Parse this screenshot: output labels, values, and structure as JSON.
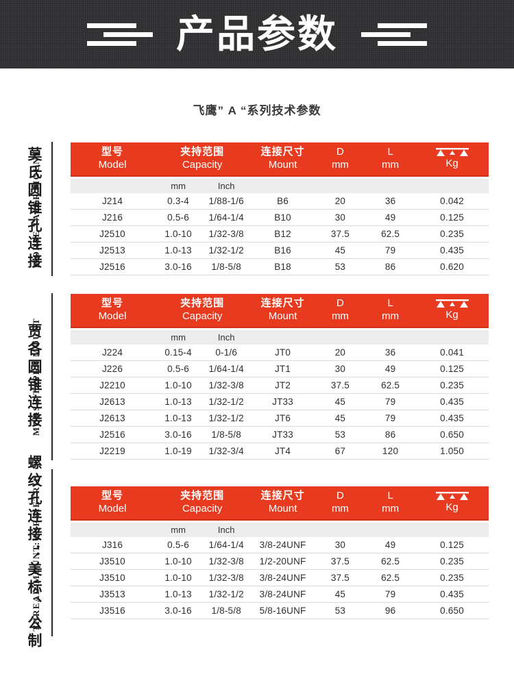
{
  "banner": {
    "title": "产品参数"
  },
  "subtitle": "飞鹰” A “系列技术参数",
  "tables": [
    {
      "label_cn": "莫氏圆锥孔连接",
      "label_en": "MORSE TAPER MOUNT",
      "header": {
        "model_cn": "型号",
        "model_en": "Model",
        "capacity_cn": "夹持范围",
        "capacity_en": "Capacity",
        "mount_cn": "连接尺寸",
        "mount_en": "Mount",
        "d_top": "D",
        "d_unit": "mm",
        "l_top": "L",
        "l_unit": "mm",
        "kg_label": "Kg",
        "kg_icon": "balance-scale-icon"
      },
      "subheader": {
        "mm": "mm",
        "inch": "Inch"
      },
      "rows": [
        [
          "J214",
          "0.3-4",
          "1/88-1/6",
          "B6",
          "20",
          "36",
          "0.042"
        ],
        [
          "J216",
          "0.5-6",
          "1/64-1/4",
          "B10",
          "30",
          "49",
          "0.125"
        ],
        [
          "J2510",
          "1.0-10",
          "1/32-3/8",
          "B12",
          "37.5",
          "62.5",
          "0.235"
        ],
        [
          "J2513",
          "1.0-13",
          "1/32-1/2",
          "B16",
          "45",
          "79",
          "0.435"
        ],
        [
          "J2516",
          "3.0-16",
          "1/8-5/8",
          "B18",
          "53",
          "86",
          "0.620"
        ]
      ]
    },
    {
      "label_cn": "贾各圆锥连接",
      "label_en": "MORSE TAPER MOUNT",
      "header": {
        "model_cn": "型号",
        "model_en": "Model",
        "capacity_cn": "夹持范围",
        "capacity_en": "Capacity",
        "mount_cn": "连接尺寸",
        "mount_en": "Mount",
        "d_top": "D",
        "d_unit": "mm",
        "l_top": "L",
        "l_unit": "mm",
        "kg_label": "Kg",
        "kg_icon": "balance-scale-icon"
      },
      "subheader": {
        "mm": "mm",
        "inch": "Inch"
      },
      "rows": [
        [
          "J224",
          "0.15-4",
          "0-1/6",
          "JT0",
          "20",
          "36",
          "0.041"
        ],
        [
          "J226",
          "0.5-6",
          "1/64-1/4",
          "JT1",
          "30",
          "49",
          "0.125"
        ],
        [
          "J2210",
          "1.0-10",
          "1/32-3/8",
          "JT2",
          "37.5",
          "62.5",
          "0.235"
        ],
        [
          "J2613",
          "1.0-13",
          "1/32-1/2",
          "JT33",
          "45",
          "79",
          "0.435"
        ],
        [
          "J2613",
          "1.0-13",
          "1/32-1/2",
          "JT6",
          "45",
          "79",
          "0.435"
        ],
        [
          "J2516",
          "3.0-16",
          "1/8-5/8",
          "JT33",
          "53",
          "86",
          "0.650"
        ],
        [
          "J2219",
          "1.0-19",
          "1/32-3/4",
          "JT4",
          "67",
          "120",
          "1.050"
        ]
      ]
    },
    {
      "label_cn": "螺纹孔连接：美标、公制",
      "label_en": "THREAD MOUNT:UNF METRIC",
      "header": {
        "model_cn": "型号",
        "model_en": "Model",
        "capacity_cn": "夹持范围",
        "capacity_en": "Capacity",
        "mount_cn": "连接尺寸",
        "mount_en": "Mount",
        "d_top": "D",
        "d_unit": "mm",
        "l_top": "L",
        "l_unit": "mm",
        "kg_label": "Kg",
        "kg_icon": "balance-scale-icon"
      },
      "subheader": {
        "mm": "mm",
        "inch": "Inch"
      },
      "rows": [
        [
          "J316",
          "0.5-6",
          "1/64-1/4",
          "3/8-24UNF",
          "30",
          "49",
          "0.125"
        ],
        [
          "J3510",
          "1.0-10",
          "1/32-3/8",
          "1/2-20UNF",
          "37.5",
          "62.5",
          "0.235"
        ],
        [
          "J3510",
          "1.0-10",
          "1/32-3/8",
          "3/8-24UNF",
          "37.5",
          "62.5",
          "0.235"
        ],
        [
          "J3513",
          "1.0-13",
          "1/32-1/2",
          "3/8-24UNF",
          "45",
          "79",
          "0.435"
        ],
        [
          "J3516",
          "3.0-16",
          "1/8-5/8",
          "5/8-16UNF",
          "53",
          "96",
          "0.650"
        ]
      ]
    }
  ],
  "colors": {
    "accent_red": "#e83a1e",
    "banner_bg": "#2e2d2f",
    "subheader_gray": "#ececec"
  }
}
